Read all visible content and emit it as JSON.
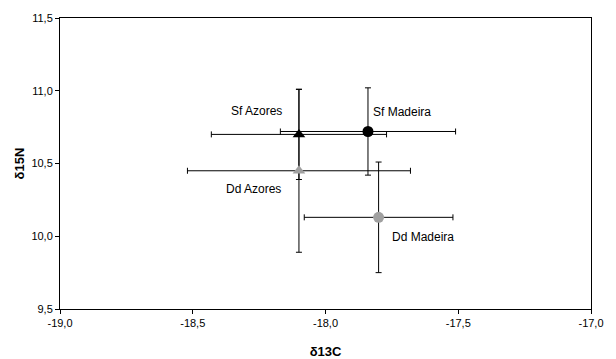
{
  "chart_data": {
    "type": "scatter",
    "x_label": "δ13C",
    "y_label": "δ15N",
    "xlim": [
      -19,
      -17
    ],
    "ylim": [
      9.5,
      11.5
    ],
    "xticks": [
      {
        "value": -19,
        "label": "-19,0"
      },
      {
        "value": -18.5,
        "label": "-18,5"
      },
      {
        "value": -18,
        "label": "-18,0"
      },
      {
        "value": -17.5,
        "label": "-17,5"
      },
      {
        "value": -17,
        "label": "-17,0"
      }
    ],
    "yticks": [
      {
        "value": 9.5,
        "label": "9,5"
      },
      {
        "value": 10,
        "label": "10,0"
      },
      {
        "value": 10.5,
        "label": "10,5"
      },
      {
        "value": 11,
        "label": "11,0"
      },
      {
        "value": 11.5,
        "label": "11,5"
      }
    ],
    "grid": false,
    "series": [
      {
        "name": "Sf Azores",
        "color": "#000000",
        "marker": "triangle-up",
        "x": [
          -18.1
        ],
        "values": [
          10.7
        ],
        "x_error": [
          0.33
        ],
        "y_error": [
          0.31
        ]
      },
      {
        "name": "Sf Madeira",
        "color": "#000000",
        "marker": "circle",
        "x": [
          -17.84
        ],
        "values": [
          10.72
        ],
        "x_error": [
          0.33
        ],
        "y_error": [
          0.3
        ]
      },
      {
        "name": "Dd Azores",
        "color": "#a0a0a0",
        "marker": "triangle-up",
        "x": [
          -18.1
        ],
        "values": [
          10.45
        ],
        "x_error": [
          0.42
        ],
        "y_error": [
          0.56
        ]
      },
      {
        "name": "Dd Madeira",
        "color": "#a0a0a0",
        "marker": "circle",
        "x": [
          -17.8
        ],
        "values": [
          10.13
        ],
        "x_error": [
          0.28
        ],
        "y_error": [
          0.38
        ]
      }
    ]
  }
}
